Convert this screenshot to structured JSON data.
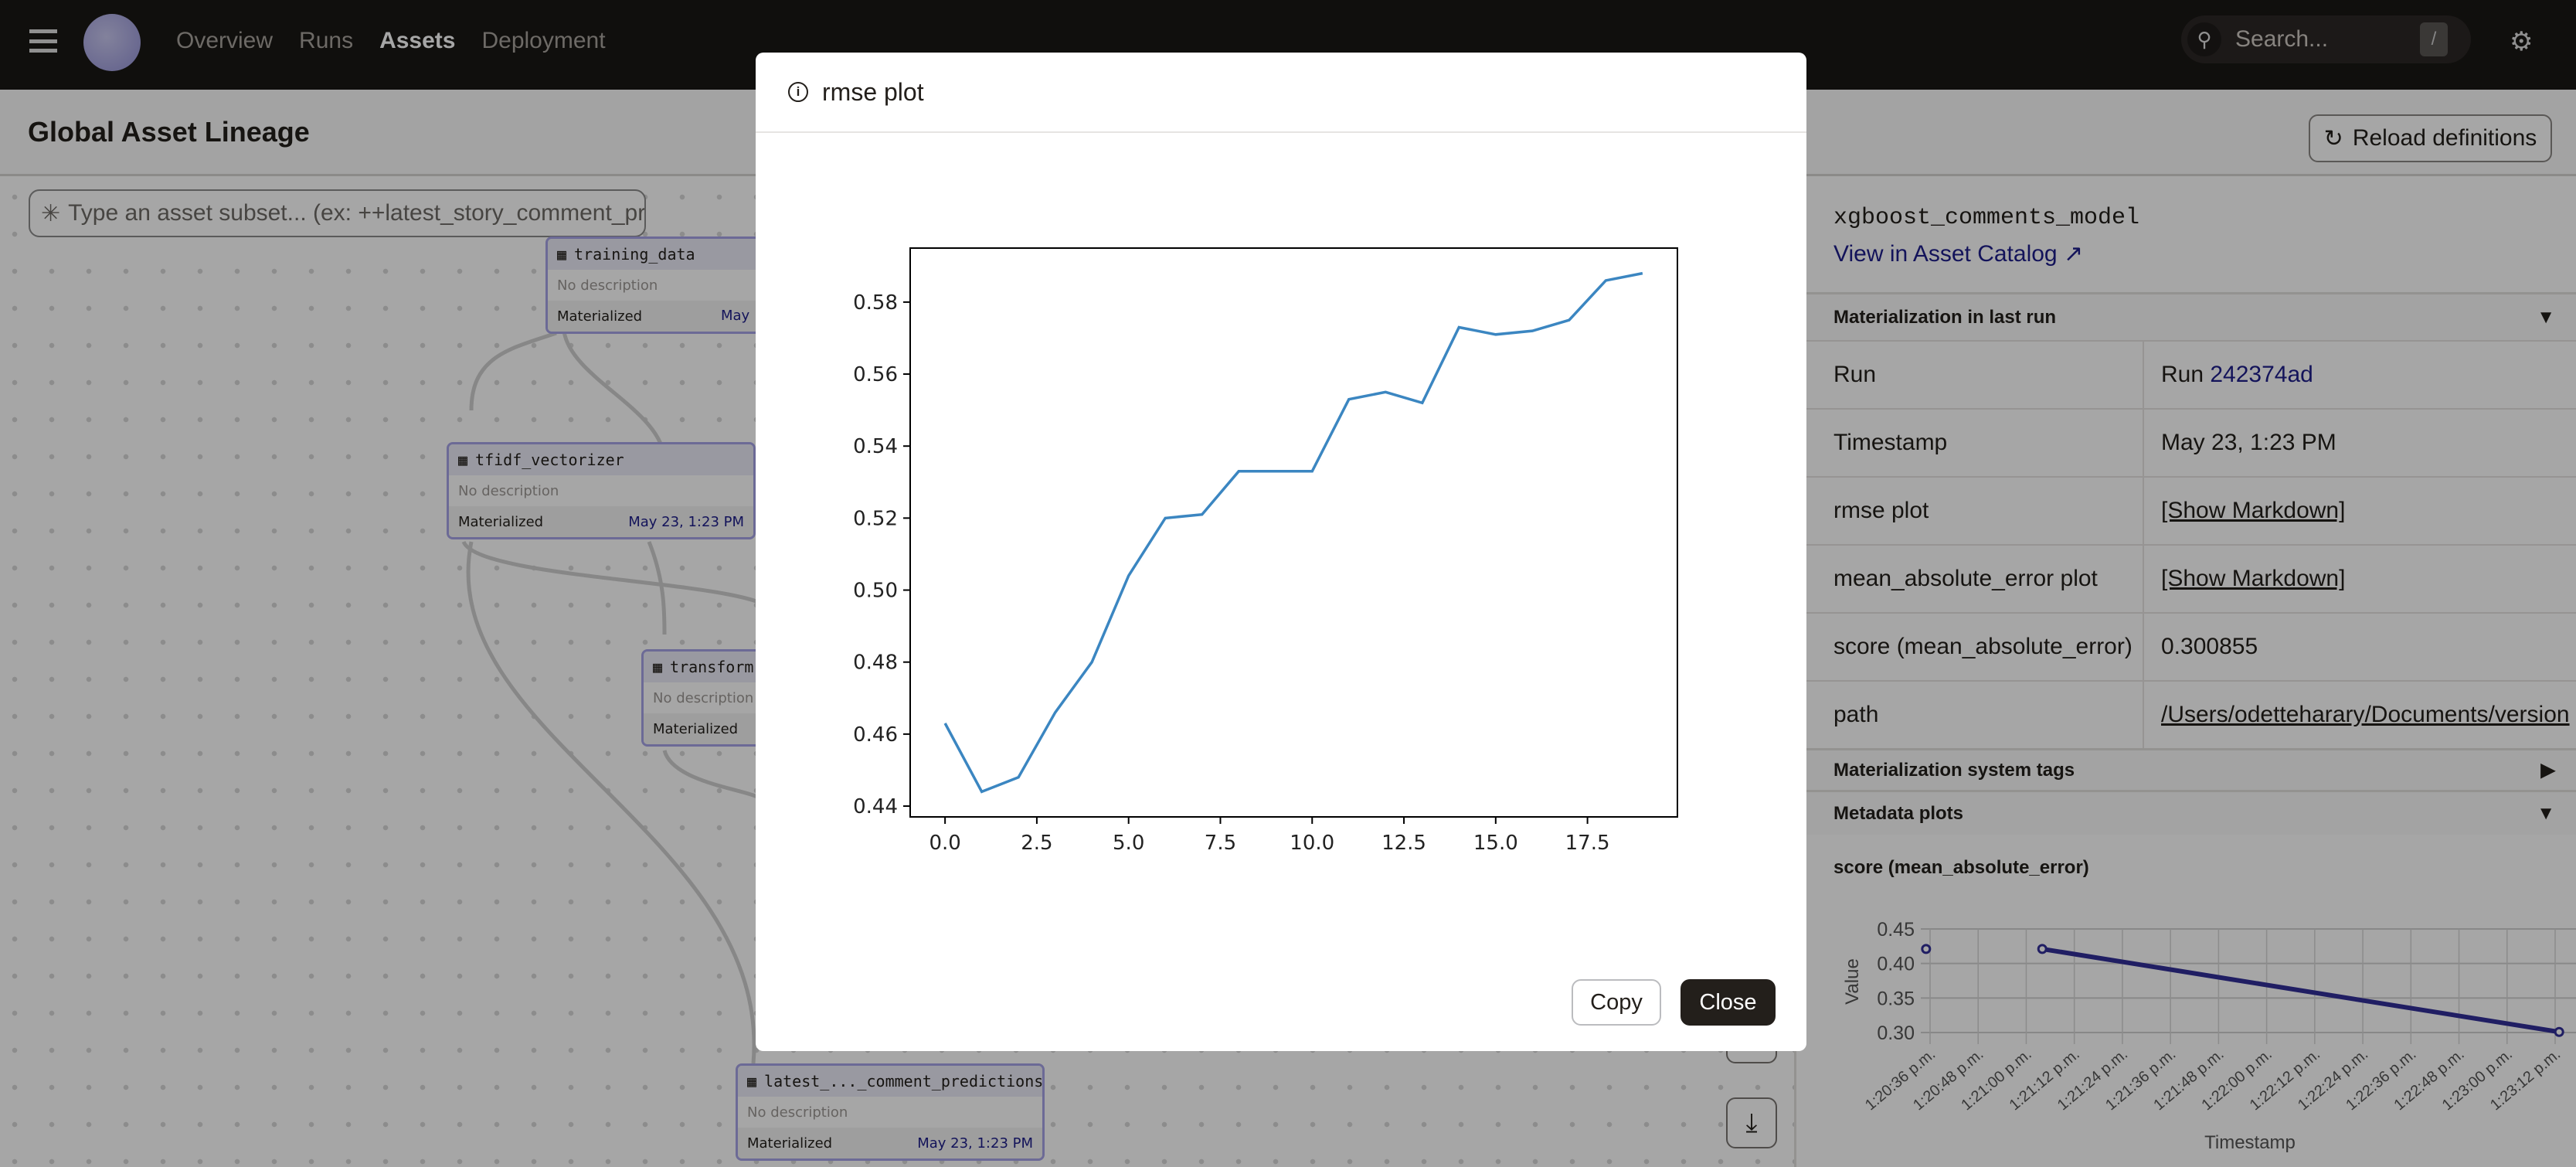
{
  "nav": {
    "items": [
      {
        "label": "Overview"
      },
      {
        "label": "Runs"
      },
      {
        "label": "Assets",
        "active": true
      },
      {
        "label": "Deployment"
      }
    ],
    "search_placeholder": "Search...",
    "search_shortcut": "/"
  },
  "page": {
    "title": "Global Asset Lineage",
    "reload_label": "Reload definitions",
    "subset_placeholder": "Type an asset subset... (ex: ++latest_story_comment_pr"
  },
  "graph": {
    "nodes": [
      {
        "name": "training_data",
        "description": "No description",
        "status": "Materialized",
        "date": "May"
      },
      {
        "name": "tfidf_vectorizer",
        "description": "No description",
        "status": "Materialized",
        "date": "May 23, 1:23 PM"
      },
      {
        "name": "transform",
        "description": "No description",
        "status": "Materialized",
        "date": ""
      },
      {
        "name": "latest_..._comment_predictions",
        "description": "No description",
        "status": "Materialized",
        "date": "May 23, 1:23 PM"
      }
    ]
  },
  "panel": {
    "asset_name": "xgboost_comments_model",
    "catalog_link": "View in Asset Catalog",
    "sections": {
      "last_run": "Materialization in last run",
      "system_tags": "Materialization system tags",
      "metadata_plots": "Metadata plots"
    },
    "rows": [
      {
        "key": "Run",
        "prefix": "Run ",
        "value": "242374ad"
      },
      {
        "key": "Timestamp",
        "value": "May 23, 1:23 PM"
      },
      {
        "key": "rmse plot",
        "value": "[Show Markdown]"
      },
      {
        "key": "mean_absolute_error plot",
        "value": "[Show Markdown]"
      },
      {
        "key": "score (mean_absolute_error)",
        "value": "0.300855"
      },
      {
        "key": "path",
        "value": "/Users/odetteharary/Documents/version"
      }
    ],
    "plot_title": "score (mean_absolute_error)"
  },
  "modal": {
    "title": "rmse plot",
    "copy_label": "Copy",
    "close_label": "Close"
  },
  "colors": {
    "topbar": "#1a1714",
    "accent_link": "#1e1e8a",
    "node_border": "#a7a4e6",
    "rmse_line": "#3b86c1",
    "score_line": "#322f99"
  },
  "chart_data": [
    {
      "type": "line",
      "title": "",
      "xlabel": "",
      "ylabel": "",
      "xlim": [
        -0.95,
        19.95
      ],
      "ylim": [
        0.437,
        0.595
      ],
      "xticks": [
        0.0,
        2.5,
        5.0,
        7.5,
        10.0,
        12.5,
        15.0,
        17.5
      ],
      "yticks": [
        0.44,
        0.46,
        0.48,
        0.5,
        0.52,
        0.54,
        0.56,
        0.58
      ],
      "x": [
        0,
        1,
        2,
        3,
        4,
        5,
        6,
        7,
        8,
        9,
        10,
        11,
        12,
        13,
        14,
        15,
        16,
        17,
        18,
        19
      ],
      "values": [
        0.463,
        0.444,
        0.448,
        0.466,
        0.48,
        0.504,
        0.52,
        0.521,
        0.533,
        0.533,
        0.533,
        0.553,
        0.555,
        0.552,
        0.573,
        0.571,
        0.572,
        0.575,
        0.586,
        0.588
      ]
    },
    {
      "type": "line",
      "title": "",
      "xlabel": "Timestamp",
      "ylabel": "Value",
      "ylim": [
        0.3,
        0.45
      ],
      "yticks": [
        0.45,
        0.4,
        0.35,
        0.3
      ],
      "grid": true,
      "xticks": [
        "1:20:36 p.m.",
        "1:20:48 p.m.",
        "1:21:00 p.m.",
        "1:21:12 p.m.",
        "1:21:24 p.m.",
        "1:21:36 p.m.",
        "1:21:48 p.m.",
        "1:22:00 p.m.",
        "1:22:12 p.m.",
        "1:22:24 p.m.",
        "1:22:36 p.m.",
        "1:22:48 p.m.",
        "1:23:00 p.m.",
        "1:23:12 p.m."
      ],
      "points": [
        {
          "t": "1:20:35 p.m.",
          "v": 0.421
        },
        {
          "t": "1:21:04 p.m.",
          "v": 0.421
        },
        {
          "t": "1:23:13 p.m.",
          "v": 0.300855
        }
      ]
    }
  ]
}
